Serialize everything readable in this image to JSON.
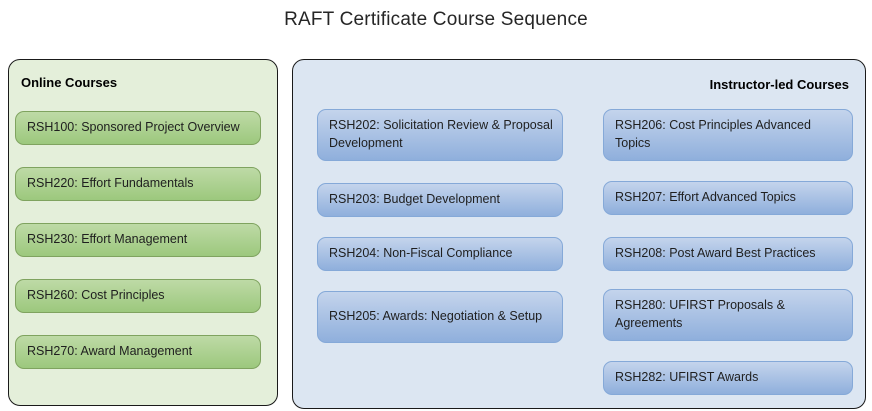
{
  "title": "RAFT Certificate Course Sequence",
  "online": {
    "label": "Online Courses",
    "courses": [
      "RSH100: Sponsored Project Overview",
      "RSH220: Effort Fundamentals",
      "RSH230: Effort Management",
      "RSH260: Cost Principles",
      "RSH270: Award Management"
    ]
  },
  "instructor": {
    "label": "Instructor-led Courses",
    "col1": [
      "RSH202: Solicitation Review & Proposal Development",
      "RSH203: Budget Development",
      "RSH204: Non-Fiscal Compliance",
      "RSH205: Awards: Negotiation & Setup"
    ],
    "col2": [
      "RSH206: Cost Principles Advanced Topics",
      "RSH207: Effort Advanced Topics",
      "RSH208: Post Award Best Practices",
      "RSH280: UFIRST Proposals & Agreements",
      "RSH282: UFIRST Awards"
    ]
  },
  "colors": {
    "online_panel_bg": "#e4efda",
    "online_box_top": "#bedaa6",
    "online_box_bottom": "#9cc87d",
    "online_box_border": "#7fa35f",
    "instructor_panel_bg": "#dce6f2",
    "instructor_box_top": "#c4d4ec",
    "instructor_box_bottom": "#8fafdc",
    "instructor_box_border": "#85a9d8",
    "panel_border": "#1a1a1a",
    "text": "#1f1f1f"
  }
}
